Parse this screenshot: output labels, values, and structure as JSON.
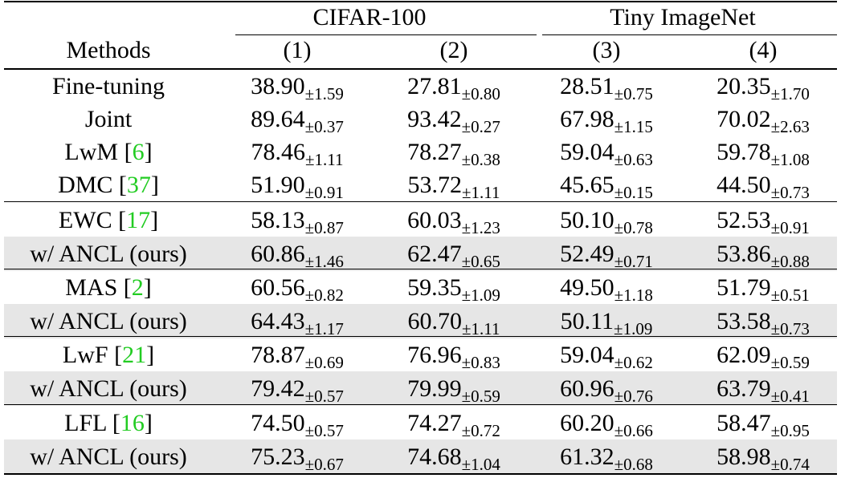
{
  "header": {
    "groups": [
      "CIFAR-100",
      "Tiny ImageNet"
    ],
    "methods_label": "Methods",
    "columns": [
      "(1)",
      "(2)",
      "(3)",
      "(4)"
    ]
  },
  "rows": [
    {
      "method": "Fine-tuning",
      "ref": "",
      "values": [
        [
          "38.90",
          "±1.59"
        ],
        [
          "27.81",
          "±0.80"
        ],
        [
          "28.51",
          "±0.75"
        ],
        [
          "20.35",
          "±1.70"
        ]
      ]
    },
    {
      "method": "Joint",
      "ref": "",
      "values": [
        [
          "89.64",
          "±0.37"
        ],
        [
          "93.42",
          "±0.27"
        ],
        [
          "67.98",
          "±1.15"
        ],
        [
          "70.02",
          "±2.63"
        ]
      ]
    },
    {
      "method": "LwM [",
      "ref": "6",
      "values": [
        [
          "78.46",
          "±1.11"
        ],
        [
          "78.27",
          "±0.38"
        ],
        [
          "59.04",
          "±0.63"
        ],
        [
          "59.78",
          "±1.08"
        ]
      ]
    },
    {
      "method": "DMC [",
      "ref": "37",
      "values": [
        [
          "51.90",
          "±0.91"
        ],
        [
          "53.72",
          "±1.11"
        ],
        [
          "45.65",
          "±0.15"
        ],
        [
          "44.50",
          "±0.73"
        ]
      ]
    },
    {
      "method": "EWC [",
      "ref": "17",
      "values": [
        [
          "58.13",
          "±0.87"
        ],
        [
          "60.03",
          "±1.23"
        ],
        [
          "50.10",
          "±0.78"
        ],
        [
          "52.53",
          "±0.91"
        ]
      ]
    },
    {
      "method": "w/ ANCL (ours)",
      "ref": "",
      "values": [
        [
          "60.86",
          "±1.46"
        ],
        [
          "62.47",
          "±0.65"
        ],
        [
          "52.49",
          "±0.71"
        ],
        [
          "53.86",
          "±0.88"
        ]
      ]
    },
    {
      "method": "MAS [",
      "ref": "2",
      "values": [
        [
          "60.56",
          "±0.82"
        ],
        [
          "59.35",
          "±1.09"
        ],
        [
          "49.50",
          "±1.18"
        ],
        [
          "51.79",
          "±0.51"
        ]
      ]
    },
    {
      "method": "w/ ANCL (ours)",
      "ref": "",
      "values": [
        [
          "64.43",
          "±1.17"
        ],
        [
          "60.70",
          "±1.11"
        ],
        [
          "50.11",
          "±1.09"
        ],
        [
          "53.58",
          "±0.73"
        ]
      ]
    },
    {
      "method": "LwF [",
      "ref": "21",
      "values": [
        [
          "78.87",
          "±0.69"
        ],
        [
          "76.96",
          "±0.83"
        ],
        [
          "59.04",
          "±0.62"
        ],
        [
          "62.09",
          "±0.59"
        ]
      ]
    },
    {
      "method": "w/ ANCL (ours)",
      "ref": "",
      "values": [
        [
          "79.42",
          "±0.57"
        ],
        [
          "79.99",
          "±0.59"
        ],
        [
          "60.96",
          "±0.76"
        ],
        [
          "63.79",
          "±0.41"
        ]
      ]
    },
    {
      "method": "LFL [",
      "ref": "16",
      "values": [
        [
          "74.50",
          "±0.57"
        ],
        [
          "74.27",
          "±0.72"
        ],
        [
          "60.20",
          "±0.66"
        ],
        [
          "58.47",
          "±0.95"
        ]
      ]
    },
    {
      "method": "w/ ANCL (ours)",
      "ref": "",
      "values": [
        [
          "75.23",
          "±0.67"
        ],
        [
          "74.68",
          "±1.04"
        ],
        [
          "61.32",
          "±0.68"
        ],
        [
          "58.98",
          "±0.74"
        ]
      ]
    }
  ]
}
